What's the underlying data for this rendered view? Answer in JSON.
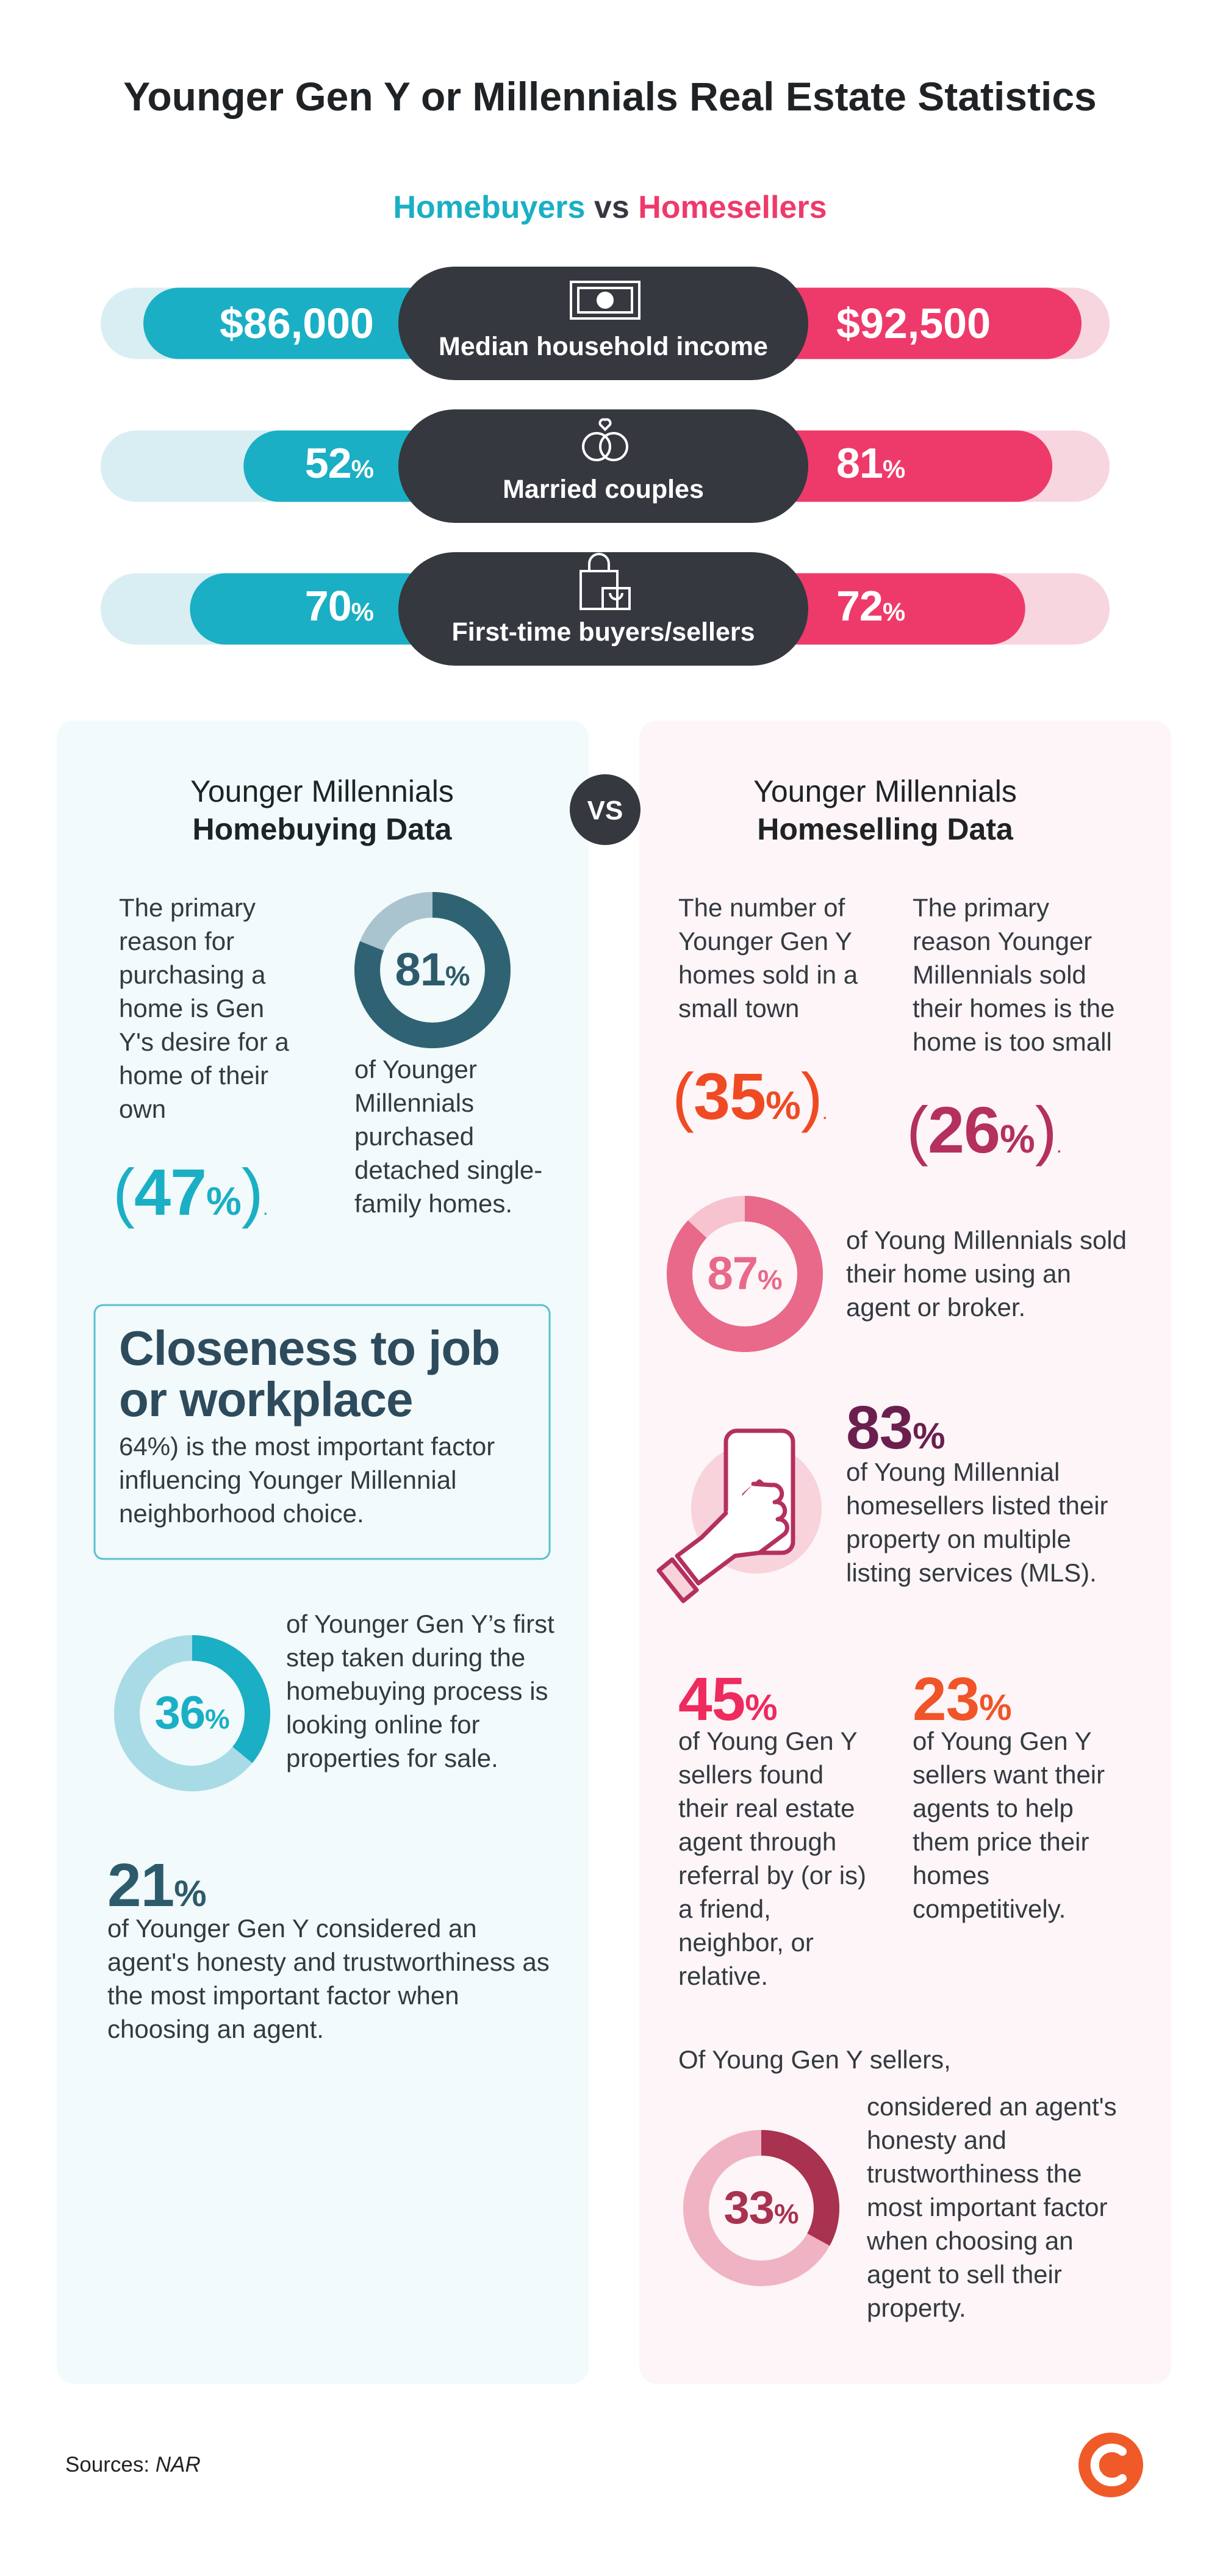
{
  "title": "Younger Gen Y or Millennials Real Estate Statistics",
  "subtitle": {
    "left": "Homebuyers",
    "vs": "vs",
    "right": "Homesellers"
  },
  "comparison": [
    {
      "label": "Median household income",
      "buyers": {
        "text": "$86,000"
      },
      "sellers": {
        "text": "$92,500"
      }
    },
    {
      "label": "Married couples",
      "buyers": {
        "value": 52,
        "unit": "%"
      },
      "sellers": {
        "value": 81,
        "unit": "%"
      }
    },
    {
      "label": "First-time buyers/sellers",
      "buyers": {
        "value": 70,
        "unit": "%"
      },
      "sellers": {
        "value": 72,
        "unit": "%"
      }
    }
  ],
  "vs": "VS",
  "buying": {
    "heading": [
      "Younger Millennials",
      "Homebuying Data"
    ],
    "reason": {
      "text": "The primary reason for purchasing a home is Gen Y's desire for a home of their own",
      "stat": {
        "prefix": "(",
        "value": 47,
        "unit": "%",
        "suffix": ")",
        "end": "."
      }
    },
    "detached": {
      "donut": {
        "value": 81,
        "unit": "%"
      },
      "text": "of Younger Millennials purchased detached single-family homes."
    },
    "closeness": {
      "heading": "Closeness to job or workplace",
      "text": "64%) is the most important factor influencing Younger Millennial neighborhood choice."
    },
    "online": {
      "donut": {
        "value": 36,
        "unit": "%"
      },
      "text": "of Younger Gen Y’s first step taken during the homebuying process is looking online for properties for sale."
    },
    "honesty": {
      "stat": {
        "value": 21,
        "unit": "%"
      },
      "text": "of Younger Gen Y considered an agent's honesty and trustworthiness as the most important factor when choosing an agent."
    }
  },
  "selling": {
    "heading": [
      "Younger Millennials",
      "Homeselling Data"
    ],
    "small_town": {
      "text": "The number of Younger Gen Y homes sold in a small town",
      "stat": {
        "prefix": "(",
        "value": 35,
        "unit": "%",
        "suffix": ")",
        "end": "."
      }
    },
    "too_small": {
      "text": "The primary reason Younger Millennials sold their homes is the home is too small",
      "stat": {
        "prefix": "(",
        "value": 26,
        "unit": "%",
        "suffix": ")",
        "end": "."
      }
    },
    "agent": {
      "donut": {
        "value": 87,
        "unit": "%"
      },
      "text": "of Young Millennials sold their home using an agent or broker."
    },
    "mls": {
      "stat": {
        "value": 83,
        "unit": "%"
      },
      "text": "of Young Millennial homesellers listed their property on multiple listing services (MLS)."
    },
    "referral": {
      "stat": {
        "value": 45,
        "unit": "%"
      },
      "text": "of Young Gen Y sellers found their real estate agent through referral by (or is) a friend, neighbor, or relative."
    },
    "pricing": {
      "stat": {
        "value": 23,
        "unit": "%"
      },
      "text": "of Young Gen Y sellers want their agents to help them price their homes competitively."
    },
    "honesty": {
      "intro": "Of Young Gen Y sellers,",
      "donut": {
        "value": 33,
        "unit": "%"
      },
      "text": "considered an agent's honesty and trustworthiness the most important factor when choosing an agent to sell their property."
    }
  },
  "sources": {
    "label": "Sources:",
    "value": "NAR"
  }
}
